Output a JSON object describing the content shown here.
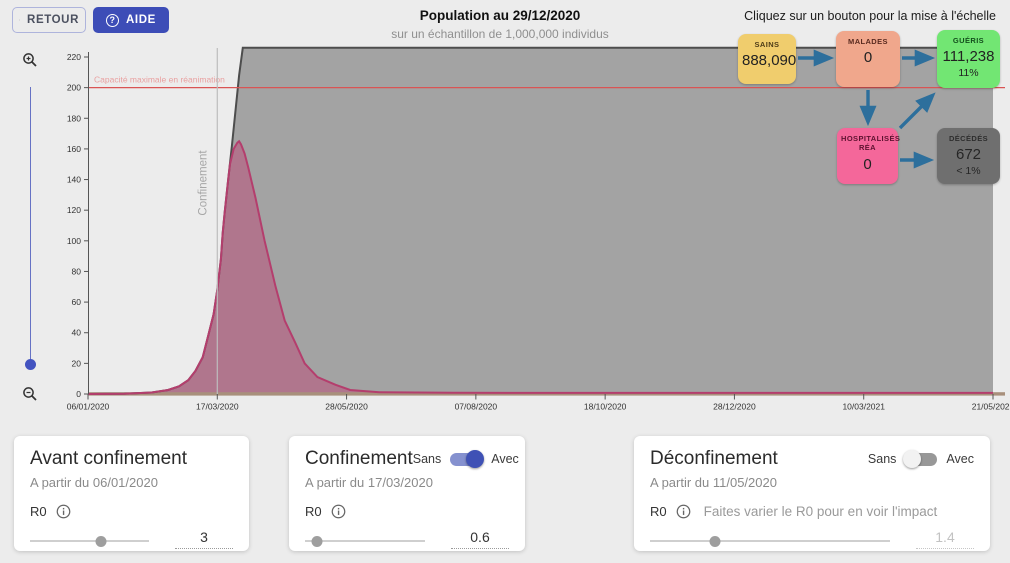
{
  "header": {
    "retour": "RETOUR",
    "aide": "AIDE",
    "aide_icon_glyph": "?",
    "title": "Population au 29/12/2020",
    "subtitle": "sur un échantillon de 1,000,000 individus",
    "scale_hint": "Cliquez sur un bouton pour la mise à l'échelle"
  },
  "flow": {
    "arrow_color": "#2d6f9c",
    "sains": {
      "label": "SAINS",
      "value": "888,090",
      "color": "#f0cd6d"
    },
    "malades": {
      "label": "MALADES",
      "value": "0",
      "color": "#f0a78c"
    },
    "gueris": {
      "label": "GUÉRIS",
      "value": "111,238",
      "pct": "11%",
      "color": "#72e673"
    },
    "hospitalises": {
      "label": "HOSPITALISÉS RÉA",
      "value": "0",
      "color": "#f4679a"
    },
    "decedes": {
      "label": "DÉCÉDÉS",
      "value": "672",
      "pct": "< 1%",
      "color": "#6f6f6f"
    }
  },
  "chart_data": {
    "type": "area",
    "title": "Population au 29/12/2020",
    "x_unit": "jours depuis le 06/01/2020",
    "xlim": [
      0,
      497
    ],
    "ylim": [
      0,
      226
    ],
    "y_ticks": [
      0,
      20,
      40,
      60,
      80,
      100,
      120,
      140,
      160,
      180,
      200,
      220
    ],
    "x_ticks": [
      {
        "day": 0,
        "label": "06/01/2020"
      },
      {
        "day": 71,
        "label": "17/03/2020"
      },
      {
        "day": 142,
        "label": "28/05/2020"
      },
      {
        "day": 213,
        "label": "07/08/2020"
      },
      {
        "day": 284,
        "label": "18/10/2020"
      },
      {
        "day": 355,
        "label": "28/12/2020"
      },
      {
        "day": 426,
        "label": "10/03/2021"
      },
      {
        "day": 497,
        "label": "21/05/2021"
      }
    ],
    "annotations": {
      "capacity_line": {
        "y": 200,
        "label": "Capacité maximale en réanimation",
        "color": "#d95454",
        "label_color": "#e9a0a0"
      },
      "confinement_line": {
        "day": 71,
        "label": "Confinement",
        "color": "#bdbdbd",
        "label_color": "#a6a6a6"
      }
    },
    "baseline_color": "#a8907c",
    "series": [
      {
        "name": "population-atteinte",
        "fill": "#a3a3a3",
        "fill_opacity": 1,
        "stroke": "#4d4d4d",
        "points": [
          [
            0,
            0
          ],
          [
            20,
            0.2
          ],
          [
            35,
            1
          ],
          [
            44,
            2.6
          ],
          [
            50,
            5
          ],
          [
            55,
            9
          ],
          [
            59,
            15
          ],
          [
            63,
            24
          ],
          [
            66,
            38
          ],
          [
            69,
            52
          ],
          [
            71,
            68
          ],
          [
            73,
            88
          ],
          [
            74,
            105
          ],
          [
            75,
            118
          ],
          [
            77,
            140
          ],
          [
            79,
            162
          ],
          [
            81,
            185
          ],
          [
            83,
            208
          ],
          [
            85,
            226
          ],
          [
            497,
            226
          ]
        ]
      },
      {
        "name": "hospitalises-rea",
        "fill": "#c24074",
        "fill_opacity": 0.45,
        "stroke": "#b43e6d",
        "points": [
          [
            0,
            0
          ],
          [
            20,
            0.2
          ],
          [
            35,
            1
          ],
          [
            44,
            2.6
          ],
          [
            50,
            5
          ],
          [
            55,
            9
          ],
          [
            59,
            15
          ],
          [
            63,
            24
          ],
          [
            66,
            38
          ],
          [
            69,
            52
          ],
          [
            71,
            68
          ],
          [
            73,
            88
          ],
          [
            74,
            105
          ],
          [
            75,
            118
          ],
          [
            77,
            140
          ],
          [
            78,
            150
          ],
          [
            80,
            160
          ],
          [
            82,
            164
          ],
          [
            83,
            165
          ],
          [
            84,
            163
          ],
          [
            86,
            157
          ],
          [
            88,
            148
          ],
          [
            92,
            128
          ],
          [
            97,
            100
          ],
          [
            103,
            70
          ],
          [
            108,
            48
          ],
          [
            114,
            33
          ],
          [
            119,
            20
          ],
          [
            126,
            11
          ],
          [
            136,
            6
          ],
          [
            144,
            2.6
          ],
          [
            160,
            1.2
          ],
          [
            200,
            0.8
          ],
          [
            300,
            0.7
          ],
          [
            497,
            0.7
          ]
        ]
      }
    ]
  },
  "panels": [
    {
      "title": "Avant confinement",
      "date": "A partir du 06/01/2020",
      "r0": "R0",
      "value": "3",
      "slider_pct": 60
    },
    {
      "title": "Confinement",
      "date": "A partir du 17/03/2020",
      "r0": "R0",
      "value": "0.6",
      "slider_pct": 10,
      "toggle": {
        "off": "Sans",
        "on": "Avec",
        "state": "on"
      }
    },
    {
      "title": "Déconfinement",
      "date": "A partir du 11/05/2020",
      "r0": "R0",
      "hint": "Faites varier le R0 pour en voir l'impact",
      "value": "1.4",
      "slider_pct": 27,
      "toggle": {
        "off": "Sans",
        "on": "Avec",
        "state": "off"
      }
    }
  ]
}
